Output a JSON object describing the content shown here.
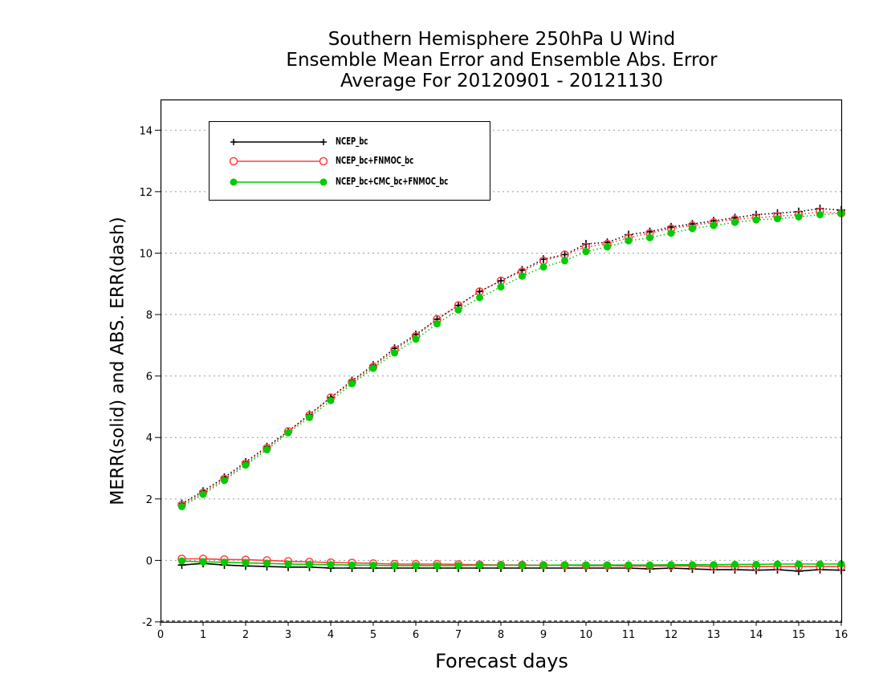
{
  "titles": {
    "line1": "Southern Hemisphere 250hPa U Wind",
    "line2": "Ensemble Mean Error and Ensemble Abs. Error",
    "line3": "Average For 20120901 - 20121130"
  },
  "chart_data": {
    "type": "line",
    "title": "Southern Hemisphere 250hPa U Wind",
    "xlabel": "Forecast days",
    "ylabel": "MERR(solid) and ABS. ERR(dash)",
    "xlim": [
      0,
      16
    ],
    "ylim": [
      -2,
      15
    ],
    "xticks": [
      0,
      1,
      2,
      3,
      4,
      5,
      6,
      7,
      8,
      9,
      10,
      11,
      12,
      13,
      14,
      15,
      16
    ],
    "yticks": [
      -2,
      0,
      2,
      4,
      6,
      8,
      10,
      12,
      14
    ],
    "grid": "horizontal dotted",
    "legend_position": "top-left",
    "x": [
      0.5,
      1,
      1.5,
      2,
      2.5,
      3,
      3.5,
      4,
      4.5,
      5,
      5.5,
      6,
      6.5,
      7,
      7.5,
      8,
      8.5,
      9,
      9.5,
      10,
      10.5,
      11,
      11.5,
      12,
      12.5,
      13,
      13.5,
      14,
      14.5,
      15,
      15.5,
      16
    ],
    "series": [
      {
        "name": "NCEP_bc",
        "color": "#000000",
        "marker": "plus",
        "abs_err": [
          1.85,
          2.25,
          2.7,
          3.2,
          3.7,
          4.2,
          4.75,
          5.3,
          5.85,
          6.35,
          6.9,
          7.35,
          7.85,
          8.3,
          8.75,
          9.1,
          9.45,
          9.8,
          9.95,
          10.3,
          10.35,
          10.6,
          10.7,
          10.85,
          10.95,
          11.05,
          11.15,
          11.25,
          11.3,
          11.35,
          11.45,
          11.4
        ],
        "mean_err": [
          -0.15,
          -0.1,
          -0.15,
          -0.18,
          -0.2,
          -0.22,
          -0.22,
          -0.25,
          -0.25,
          -0.25,
          -0.25,
          -0.25,
          -0.25,
          -0.25,
          -0.25,
          -0.25,
          -0.25,
          -0.25,
          -0.25,
          -0.25,
          -0.25,
          -0.25,
          -0.28,
          -0.25,
          -0.28,
          -0.3,
          -0.3,
          -0.32,
          -0.3,
          -0.35,
          -0.3,
          -0.32
        ]
      },
      {
        "name": "NCEP_bc+FNMOC_bc",
        "color": "#ff4040",
        "marker": "open-circle",
        "abs_err": [
          1.8,
          2.2,
          2.65,
          3.15,
          3.65,
          4.2,
          4.72,
          5.3,
          5.8,
          6.3,
          6.85,
          7.3,
          7.85,
          8.3,
          8.75,
          9.1,
          9.4,
          9.75,
          9.95,
          10.2,
          10.3,
          10.5,
          10.65,
          10.8,
          10.9,
          11.0,
          11.1,
          11.15,
          11.2,
          11.25,
          11.35,
          11.3
        ],
        "mean_err": [
          0.05,
          0.05,
          0.03,
          0.02,
          0.0,
          -0.03,
          -0.05,
          -0.07,
          -0.08,
          -0.1,
          -0.12,
          -0.12,
          -0.12,
          -0.13,
          -0.14,
          -0.15,
          -0.15,
          -0.16,
          -0.16,
          -0.17,
          -0.17,
          -0.18,
          -0.18,
          -0.18,
          -0.18,
          -0.2,
          -0.2,
          -0.2,
          -0.2,
          -0.2,
          -0.2,
          -0.2
        ]
      },
      {
        "name": "NCEP_bc+CMC_bc+FNMOC_bc",
        "color": "#00cc00",
        "marker": "filled-circle",
        "abs_err": [
          1.75,
          2.15,
          2.6,
          3.1,
          3.6,
          4.15,
          4.65,
          5.2,
          5.75,
          6.25,
          6.75,
          7.2,
          7.7,
          8.15,
          8.55,
          8.9,
          9.25,
          9.55,
          9.75,
          10.05,
          10.2,
          10.4,
          10.5,
          10.65,
          10.8,
          10.9,
          11.0,
          11.08,
          11.12,
          11.18,
          11.25,
          11.3
        ],
        "mean_err": [
          -0.02,
          -0.05,
          -0.06,
          -0.08,
          -0.1,
          -0.12,
          -0.13,
          -0.14,
          -0.15,
          -0.16,
          -0.17,
          -0.17,
          -0.17,
          -0.17,
          -0.16,
          -0.16,
          -0.16,
          -0.16,
          -0.15,
          -0.15,
          -0.15,
          -0.15,
          -0.15,
          -0.14,
          -0.14,
          -0.14,
          -0.13,
          -0.13,
          -0.12,
          -0.12,
          -0.12,
          -0.12
        ]
      }
    ]
  }
}
